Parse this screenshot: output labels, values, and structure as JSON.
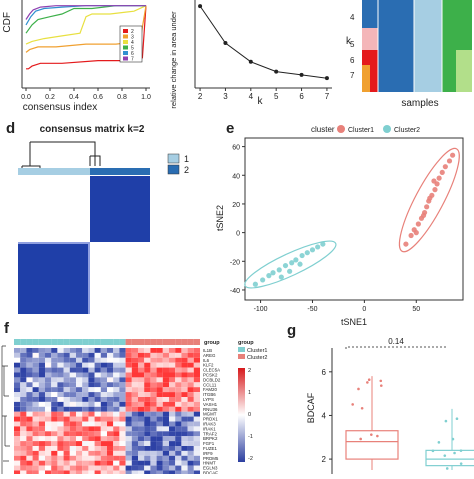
{
  "panel_labels": {
    "d": "d",
    "e": "e",
    "f": "f",
    "g": "g"
  },
  "chart_data": [
    {
      "type": "line",
      "panel": "cdf",
      "ylabel": "CDF",
      "xlabel": "consensus index",
      "x_ticks": [
        "0.0",
        "0.2",
        "0.4",
        "0.6",
        "0.8",
        "1.0"
      ],
      "legend": [
        "2",
        "3",
        "4",
        "5",
        "6",
        "7"
      ],
      "colors": {
        "2": "#e41a1c",
        "3": "#f0a030",
        "4": "#e8e040",
        "5": "#3db04a",
        "6": "#3090d0",
        "7": "#9040b0"
      },
      "series": [
        {
          "name": "2",
          "x": [
            0.0,
            0.02,
            0.05,
            0.12,
            0.3,
            0.6,
            0.9,
            0.97,
            1.0
          ],
          "y": [
            0.77,
            0.77,
            0.78,
            0.79,
            0.79,
            0.8,
            0.8,
            0.81,
            1.0
          ]
        },
        {
          "name": "3",
          "x": [
            0.0,
            0.03,
            0.1,
            0.25,
            0.5,
            0.75,
            0.95,
            1.0
          ],
          "y": [
            0.83,
            0.84,
            0.85,
            0.85,
            0.86,
            0.86,
            0.87,
            1.0
          ]
        },
        {
          "name": "4",
          "x": [
            0.0,
            0.05,
            0.15,
            0.3,
            0.45,
            0.5,
            0.55,
            0.7,
            0.9,
            1.0
          ],
          "y": [
            0.86,
            0.87,
            0.88,
            0.89,
            0.9,
            0.96,
            0.97,
            0.97,
            0.98,
            1.0
          ]
        },
        {
          "name": "5",
          "x": [
            0.0,
            0.05,
            0.1,
            0.2,
            0.3,
            0.4,
            0.55,
            0.75,
            0.9,
            1.0
          ],
          "y": [
            0.9,
            0.93,
            0.95,
            0.96,
            0.97,
            0.99,
            0.99,
            1.0,
            1.0,
            1.0
          ]
        },
        {
          "name": "6",
          "x": [
            0.0,
            0.04,
            0.08,
            0.15,
            0.3,
            0.5,
            0.8,
            1.0
          ],
          "y": [
            0.93,
            0.96,
            0.98,
            0.99,
            0.995,
            1.0,
            1.0,
            1.0
          ]
        },
        {
          "name": "7",
          "x": [
            0.0,
            0.03,
            0.06,
            0.12,
            0.25,
            0.5,
            1.0
          ],
          "y": [
            0.95,
            0.97,
            0.985,
            0.995,
            1.0,
            1.0,
            1.0
          ]
        }
      ]
    },
    {
      "type": "line",
      "panel": "delta-area",
      "ylabel": "relative change in area under",
      "xlabel": "k",
      "x": [
        2,
        3,
        4,
        5,
        6,
        7
      ],
      "y": [
        1.0,
        0.55,
        0.32,
        0.2,
        0.16,
        0.12
      ],
      "ylim": [
        0,
        1.05
      ],
      "xlim": [
        1.8,
        7.2
      ]
    },
    {
      "type": "heatmap",
      "panel": "tracking",
      "ylabel": "k",
      "xlabel": "samples",
      "y_ticks": [
        "4",
        "5",
        "6",
        "7"
      ]
    },
    {
      "type": "heatmap",
      "panel": "consensus-matrix",
      "title": "consensus matrix k=2",
      "legend": [
        "1",
        "2"
      ],
      "colors": {
        "1": "#a6cee3",
        "2": "#1f5fa8"
      }
    },
    {
      "type": "scatter",
      "panel": "tsne",
      "legend_title": "cluster",
      "xlabel": "tSNE1",
      "ylabel": "tSNE2",
      "x_ticks": [
        -100,
        -50,
        0,
        50
      ],
      "y_ticks": [
        -40,
        -20,
        0,
        20,
        40,
        60
      ],
      "xlim": [
        -115,
        95
      ],
      "ylim": [
        -47,
        66
      ],
      "series": [
        {
          "name": "Cluster1",
          "color": "#e8817a",
          "x": [
            40,
            45,
            48,
            52,
            55,
            58,
            60,
            62,
            65,
            68,
            70,
            72,
            75,
            78,
            82,
            85,
            50,
            57,
            63,
            67
          ],
          "y": [
            -8,
            -2,
            2,
            6,
            10,
            14,
            18,
            22,
            26,
            30,
            34,
            38,
            42,
            46,
            50,
            54,
            0,
            12,
            24,
            36
          ]
        },
        {
          "name": "Cluster2",
          "color": "#7fcfd0",
          "x": [
            -105,
            -98,
            -92,
            -88,
            -82,
            -76,
            -70,
            -66,
            -60,
            -55,
            -50,
            -45,
            -40,
            -80,
            -72,
            -62
          ],
          "y": [
            -36,
            -33,
            -30,
            -28,
            -26,
            -23,
            -21,
            -19,
            -16,
            -14,
            -12,
            -10,
            -8,
            -31,
            -27,
            -22
          ]
        }
      ]
    },
    {
      "type": "heatmap",
      "panel": "expression",
      "legend_title": "group",
      "legend": [
        "Cluster1",
        "Cluster2"
      ],
      "group_label": "group",
      "scale_ticks": [
        "2",
        "1",
        "0",
        "-1",
        "-2"
      ],
      "genes": [
        "IL1B",
        "AREG",
        "IL6",
        "KLF2",
        "CLEC5A",
        "PCSK2",
        "DCBLD2",
        "CCL11",
        "FAM20",
        "ITGB6",
        "LYPS",
        "VASH1",
        "RNU36",
        "MGMT",
        "PRDX1",
        "IRAK3",
        "IRAK1",
        "TRAF2",
        "BRPK2",
        "FGF1",
        "FUZE1",
        "IRF9",
        "PRDM5",
        "HNMT",
        "EGLN3",
        "BDCAF"
      ]
    },
    {
      "type": "box",
      "panel": "bdcaf-box",
      "ylabel": "BDCAF",
      "y_ticks": [
        "2",
        "4",
        "6"
      ],
      "ylim": [
        1.5,
        7
      ],
      "pvalue": "0.14",
      "series": [
        {
          "name": "Cluster1",
          "color": "#e8817a",
          "q1": 2.0,
          "median": 2.8,
          "q3": 3.3,
          "min": 1.5,
          "max": 5.8
        },
        {
          "name": "Cluster2",
          "color": "#7fcfd0",
          "q1": 1.7,
          "median": 2.0,
          "q3": 2.4,
          "min": 1.5,
          "max": 4.3
        }
      ]
    }
  ]
}
